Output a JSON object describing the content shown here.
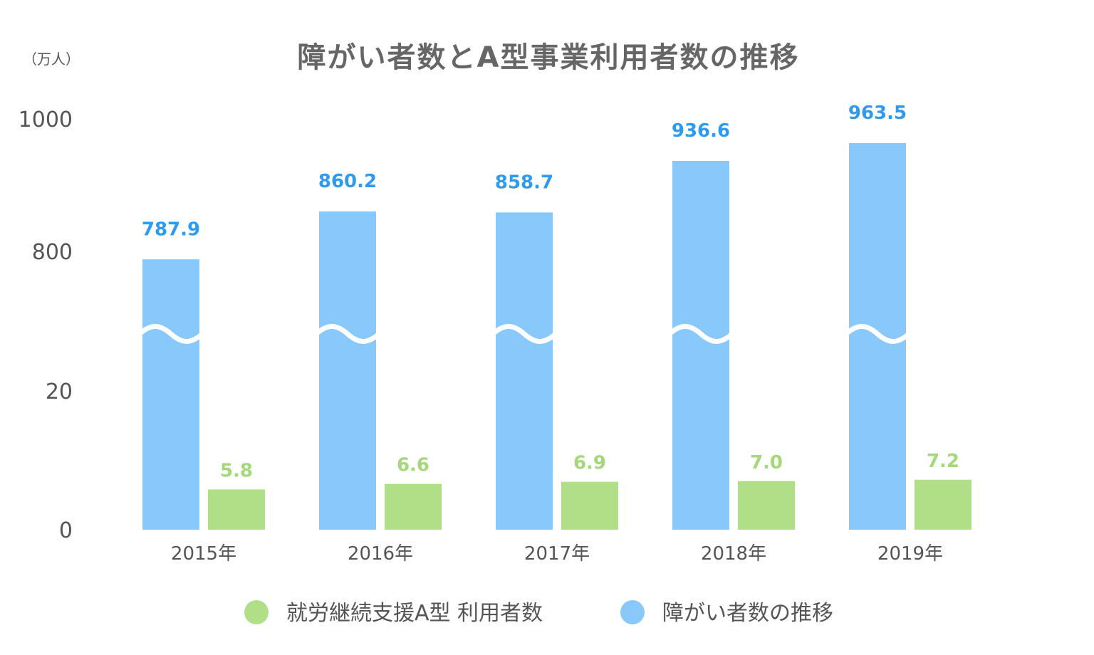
{
  "colors": {
    "disability": "#88c8fa",
    "type_a": "#b0df88",
    "disability_label": "#2e9bf0",
    "type_a_label": "#a4d87a",
    "break_line": "#ffffff",
    "text": "#555555",
    "title": "#666666"
  },
  "chart_data": {
    "type": "bar",
    "title": "障がい者数とA型事業利用者数の推移",
    "ylabel": "（万人）",
    "categories": [
      "2015年",
      "2016年",
      "2017年",
      "2018年",
      "2019年"
    ],
    "y_ticks": [
      "1000",
      "800",
      "20",
      "0"
    ],
    "axis_break": true,
    "ylim_lower": [
      0,
      20
    ],
    "ylim_upper": [
      800,
      1000
    ],
    "legend_position": "bottom",
    "series": [
      {
        "name": "障がい者数の推移",
        "values": [
          787.9,
          860.2,
          858.7,
          936.6,
          963.5
        ],
        "labels": [
          "787.9",
          "860.2",
          "858.7",
          "936.6",
          "963.5"
        ]
      },
      {
        "name": "就労継続支援A型 利用者数",
        "values": [
          5.8,
          6.6,
          6.9,
          7.0,
          7.2
        ],
        "labels": [
          "5.8",
          "6.6",
          "6.9",
          "7.0",
          "7.2"
        ]
      }
    ]
  },
  "legend": [
    {
      "label": "就労継続支援A型 利用者数",
      "series_index": 1
    },
    {
      "label": "障がい者数の推移",
      "series_index": 0
    }
  ]
}
